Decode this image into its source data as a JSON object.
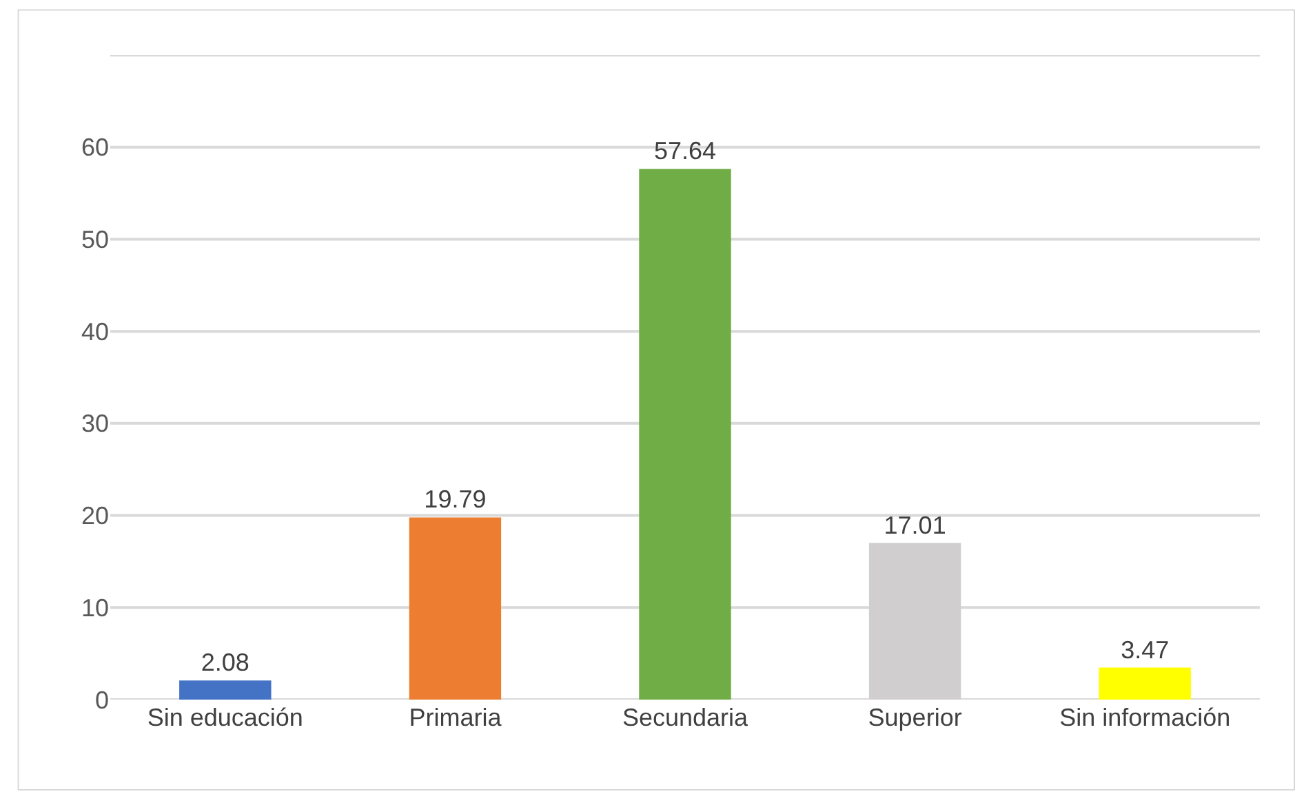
{
  "chart_data": {
    "type": "bar",
    "categories": [
      "Sin educación",
      "Primaria",
      "Secundaria",
      "Superior",
      "Sin información"
    ],
    "values": [
      2.08,
      19.79,
      57.64,
      17.01,
      3.47
    ],
    "colors": [
      "#4472c4",
      "#ed7d31",
      "#70ad47",
      "#d0cece",
      "#ffff00"
    ],
    "ylim": [
      0,
      70
    ],
    "yticks": [
      0,
      10,
      20,
      30,
      40,
      50,
      60,
      {
        "value": 70,
        "label": null
      }
    ],
    "grid": "y",
    "data_labels": true
  }
}
